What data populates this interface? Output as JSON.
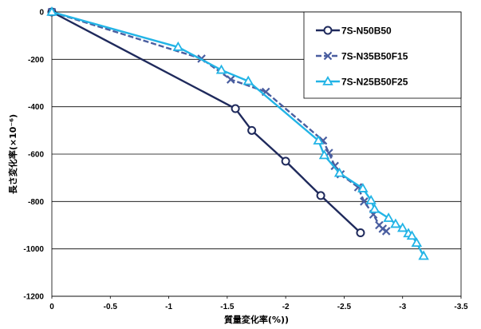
{
  "chart_data": {
    "type": "line",
    "xlabel": "質量変化率(%))",
    "ylabel": "長さ変化率(×10⁻⁶)",
    "xlim": [
      0,
      -3.5
    ],
    "ylim": [
      -1200,
      0
    ],
    "x_ticks": [
      0,
      -0.5,
      -1,
      -1.5,
      -2,
      -2.5,
      -3,
      -3.5
    ],
    "x_tick_labels": [
      "0",
      "-0.5",
      "-1",
      "-1.5",
      "-2",
      "-2.5",
      "-3",
      "-3.5"
    ],
    "y_ticks": [
      0,
      -200,
      -400,
      -600,
      -800,
      -1000,
      -1200
    ],
    "y_tick_labels": [
      "0",
      "-200",
      "-400",
      "-600",
      "-800",
      "-1000",
      "-1200"
    ],
    "grid": "horizontal",
    "legend_position": "top-right",
    "series": [
      {
        "name": "7S-N50B50",
        "color": "#1f2a5c",
        "marker": "circle",
        "line_style": "solid",
        "points": [
          [
            0,
            0
          ],
          [
            -1.57,
            -408
          ],
          [
            -1.71,
            -500
          ],
          [
            -2.0,
            -630
          ],
          [
            -2.3,
            -775
          ],
          [
            -2.64,
            -932
          ]
        ]
      },
      {
        "name": "7S-N35B50F15",
        "color": "#4a5ea0",
        "marker": "x",
        "line_style": "dashed",
        "points": [
          [
            0,
            0
          ],
          [
            -1.28,
            -197
          ],
          [
            -1.53,
            -285
          ],
          [
            -1.83,
            -337
          ],
          [
            -2.32,
            -543
          ],
          [
            -2.37,
            -595
          ],
          [
            -2.42,
            -650
          ],
          [
            -2.47,
            -685
          ],
          [
            -2.62,
            -740
          ],
          [
            -2.67,
            -800
          ],
          [
            -2.75,
            -855
          ],
          [
            -2.8,
            -900
          ],
          [
            -2.83,
            -915
          ],
          [
            -2.86,
            -925
          ]
        ]
      },
      {
        "name": "7S-N25B50F25",
        "color": "#22b4e6",
        "marker": "triangle",
        "line_style": "solid",
        "points": [
          [
            0,
            0
          ],
          [
            -1.08,
            -148
          ],
          [
            -1.45,
            -245
          ],
          [
            -1.68,
            -292
          ],
          [
            -2.28,
            -543
          ],
          [
            -2.33,
            -605
          ],
          [
            -2.46,
            -680
          ],
          [
            -2.66,
            -745
          ],
          [
            -2.73,
            -795
          ],
          [
            -2.76,
            -832
          ],
          [
            -2.88,
            -870
          ],
          [
            -2.94,
            -895
          ],
          [
            -3.0,
            -912
          ],
          [
            -3.05,
            -935
          ],
          [
            -3.08,
            -945
          ],
          [
            -3.12,
            -975
          ],
          [
            -3.18,
            -1030
          ]
        ]
      }
    ]
  }
}
